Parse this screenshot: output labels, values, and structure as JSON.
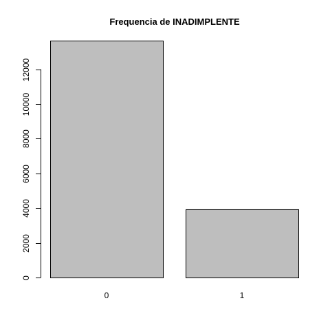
{
  "chart_data": {
    "type": "bar",
    "title": "Frequencia de INADIMPLENTE",
    "categories": [
      "0",
      "1"
    ],
    "values": [
      13650,
      3930
    ],
    "yticks": [
      "0",
      "2000",
      "4000",
      "6000",
      "8000",
      "10000",
      "12000"
    ],
    "ytick_values": [
      0,
      2000,
      4000,
      6000,
      8000,
      10000,
      12000
    ],
    "ylim": [
      0,
      13650
    ],
    "grid": false,
    "legend": "none",
    "colors": {
      "bar_fill": "#bebebe",
      "bar_stroke": "#000000",
      "axis": "#000000",
      "text": "#000000"
    }
  }
}
